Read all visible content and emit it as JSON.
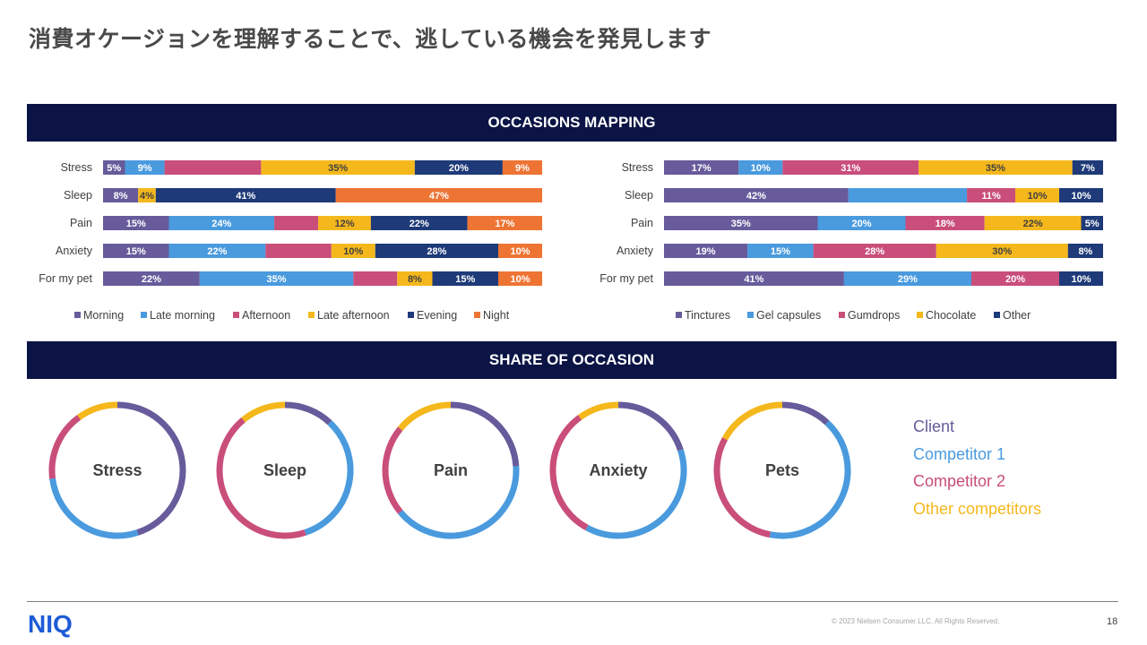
{
  "page": {
    "title": "消費オケージョンを理解することで、逃している機会を発見します",
    "copyright": "© 2023 Nielsen Consumer LLC. All Rights Reserved.",
    "page_number": "18",
    "logo_text": "NIQ"
  },
  "banners": {
    "occasions": "OCCASIONS MAPPING",
    "share": "SHARE OF OCCASION"
  },
  "colors": {
    "purple": "#675b9b",
    "blue": "#4a9ade",
    "pink": "#c94e7a",
    "yellow": "#f5b81c",
    "navy": "#1e3a78",
    "orange": "#ee7434",
    "banner": "#0b1445",
    "logo": "#1d5bd6"
  },
  "chart_data": [
    {
      "type": "bar",
      "orientation": "horizontal",
      "stacked": true,
      "categories": [
        "Stress",
        "Sleep",
        "Pain",
        "Anxiety",
        "For my pet"
      ],
      "series": [
        {
          "name": "Morning",
          "color": "#675b9b",
          "values": [
            5,
            8,
            15,
            15,
            22
          ]
        },
        {
          "name": "Late morning",
          "color": "#4a9ade",
          "values": [
            9,
            0,
            24,
            22,
            35
          ]
        },
        {
          "name": "Afternoon",
          "color": "#c94e7a",
          "values": [
            22,
            0,
            10,
            15,
            10
          ]
        },
        {
          "name": "Late afternoon",
          "color": "#f5b81c",
          "values": [
            35,
            4,
            12,
            10,
            8
          ]
        },
        {
          "name": "Evening",
          "color": "#1e3a78",
          "values": [
            20,
            41,
            22,
            28,
            15
          ]
        },
        {
          "name": "Night",
          "color": "#ee7434",
          "values": [
            9,
            47,
            17,
            10,
            10
          ]
        }
      ],
      "data_labels": [
        [
          "5%",
          "9%",
          "",
          "35%",
          "20%",
          "9%"
        ],
        [
          "8%",
          "",
          "",
          "4%",
          "41%",
          "47%"
        ],
        [
          "15%",
          "24%",
          "",
          "12%",
          "22%",
          "17%"
        ],
        [
          "15%",
          "22%",
          "",
          "10%",
          "28%",
          "10%"
        ],
        [
          "22%",
          "35%",
          "",
          "8%",
          "15%",
          "10%"
        ]
      ],
      "legend_position": "bottom"
    },
    {
      "type": "bar",
      "orientation": "horizontal",
      "stacked": true,
      "categories": [
        "Stress",
        "Sleep",
        "Pain",
        "Anxiety",
        "For my pet"
      ],
      "series": [
        {
          "name": "Tinctures",
          "color": "#675b9b",
          "values": [
            17,
            42,
            35,
            19,
            41
          ]
        },
        {
          "name": "Gel capsules",
          "color": "#4a9ade",
          "values": [
            10,
            27,
            20,
            15,
            29
          ]
        },
        {
          "name": "Gumdrops",
          "color": "#c94e7a",
          "values": [
            31,
            11,
            18,
            28,
            20
          ]
        },
        {
          "name": "Chocolate",
          "color": "#f5b81c",
          "values": [
            35,
            10,
            22,
            30,
            0
          ]
        },
        {
          "name": "Other",
          "color": "#1e3a78",
          "values": [
            7,
            10,
            5,
            8,
            10
          ]
        }
      ],
      "data_labels": [
        [
          "17%",
          "10%",
          "31%",
          "35%",
          "7%"
        ],
        [
          "42%",
          "",
          "11%",
          "10%",
          "10%"
        ],
        [
          "35%",
          "20%",
          "18%",
          "22%",
          "5%"
        ],
        [
          "19%",
          "15%",
          "28%",
          "30%",
          "8%"
        ],
        [
          "41%",
          "29%",
          "20%",
          "",
          "10%"
        ]
      ],
      "legend_position": "bottom"
    },
    {
      "type": "pie",
      "variant": "donut",
      "series_names": [
        "Client",
        "Competitor 1",
        "Competitor 2",
        "Other competitors"
      ],
      "series_colors": [
        "#675b9b",
        "#4a9ade",
        "#c94e7a",
        "#f5b81c"
      ],
      "charts": [
        {
          "label": "Stress",
          "values": [
            45,
            28,
            17,
            10
          ]
        },
        {
          "label": "Sleep",
          "values": [
            12,
            33,
            44,
            11
          ]
        },
        {
          "label": "Pain",
          "values": [
            24,
            40,
            22,
            14
          ]
        },
        {
          "label": "Anxiety",
          "values": [
            20,
            38,
            32,
            10
          ]
        },
        {
          "label": "Pets",
          "values": [
            12,
            41,
            30,
            17
          ]
        }
      ],
      "legend_position": "right"
    }
  ]
}
